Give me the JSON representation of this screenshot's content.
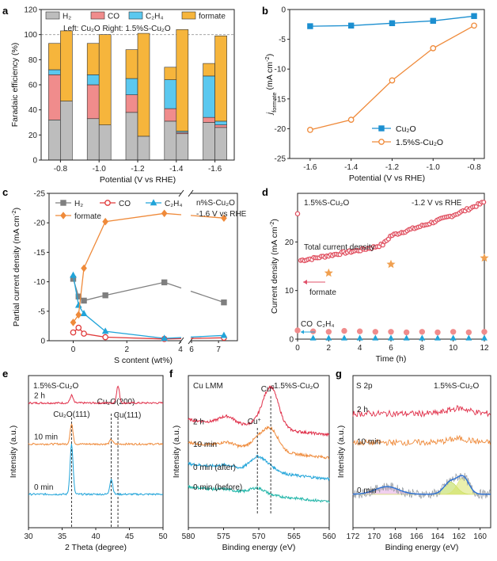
{
  "figure": {
    "page_bg": "#ffffff"
  },
  "chart_data": [
    {
      "id": "a",
      "panel_label": "a",
      "type": "bar",
      "stacked": true,
      "xlabel": "Potential (V vs RHE)",
      "ylabel": "Faradaic efficiency (%)",
      "ylim": [
        0,
        120
      ],
      "yticks": [
        0,
        20,
        40,
        60,
        80,
        100,
        120
      ],
      "reference_line": 100,
      "categories": [
        "-0.8",
        "-1.0",
        "-1.2",
        "-1.4",
        "-1.6"
      ],
      "annotation": "Left: Cu₂O   Right: 1.5%S-Cu₂O",
      "legend": [
        {
          "name": "H₂",
          "color": "#bdbdbd"
        },
        {
          "name": "CO",
          "color": "#f08c8c"
        },
        {
          "name": "C₂H₄",
          "color": "#5bc8ef"
        },
        {
          "name": "formate",
          "color": "#f6b53c"
        }
      ],
      "groups": [
        {
          "sample": "Cu₂O",
          "H2": [
            32,
            33,
            38,
            31,
            30
          ],
          "CO": [
            36,
            27,
            14,
            10,
            4
          ],
          "C2H4": [
            4,
            8,
            13,
            23,
            33
          ],
          "formate": [
            21,
            25,
            23,
            10,
            10
          ]
        },
        {
          "sample": "1.5%S-Cu₂O",
          "H2": [
            47,
            28,
            19,
            21,
            26
          ],
          "CO": [
            0,
            0,
            0,
            1,
            2
          ],
          "C2H4": [
            0,
            0,
            0,
            1,
            3
          ],
          "formate": [
            56,
            72,
            82,
            81,
            68
          ]
        }
      ]
    },
    {
      "id": "b",
      "panel_label": "b",
      "type": "line",
      "xlabel": "Potential (V vs RHE)",
      "ylabel": "j_formate (mA cm⁻²)",
      "ylabel_main": "j",
      "ylabel_sub": "formate",
      "ylabel_rest": " (mA cm",
      "ylabel_sup": "-2",
      "ylabel_end": ")",
      "xlim": [
        -1.7,
        -0.75
      ],
      "ylim": [
        -25,
        0
      ],
      "xticks": [
        "-1.6",
        "-1.4",
        "-1.2",
        "-1.0",
        "-0.8"
      ],
      "yticks": [
        "-25",
        "-20",
        "-15",
        "-10",
        "-5",
        "0"
      ],
      "series": [
        {
          "name": "Cu₂O",
          "color": "#1c8fd0",
          "marker": "square",
          "x": [
            -1.6,
            -1.4,
            -1.2,
            -1.0,
            -0.8
          ],
          "y": [
            -2.8,
            -2.7,
            -2.3,
            -1.9,
            -1.1
          ]
        },
        {
          "name": "1.5%S-Cu₂O",
          "color": "#ef8a3a",
          "marker": "circle",
          "x": [
            -1.6,
            -1.4,
            -1.2,
            -1.0,
            -0.8
          ],
          "y": [
            -20.2,
            -18.5,
            -11.9,
            -6.5,
            -2.7
          ]
        }
      ]
    },
    {
      "id": "c",
      "panel_label": "c",
      "type": "line",
      "xlabel": "S content (wt%)",
      "ylabel": "Partial current density (mA cm⁻²)",
      "ylabel_main": "Partial current density (mA cm",
      "ylabel_sup": "-2",
      "ylabel_end": ")",
      "ylim": [
        0,
        -25
      ],
      "yticks": [
        "0",
        "-5",
        "-10",
        "-15",
        "-20",
        "-25"
      ],
      "xticks": [
        "0",
        "2",
        "4",
        "6",
        "7"
      ],
      "axis_break": "6",
      "annotation_line1": "n%S-Cu₂O",
      "annotation_line2": "-1.6 V vs RHE",
      "x": [
        0,
        0.2,
        0.4,
        1.2,
        3.4,
        7.2
      ],
      "series": [
        {
          "name": "H₂",
          "color": "#7f7f7f",
          "marker": "square",
          "y": [
            -10.5,
            -7.5,
            -6.8,
            -7.7,
            -9.9,
            -6.5
          ]
        },
        {
          "name": "CO",
          "color": "#e03a3a",
          "marker": "circle",
          "y": [
            -1.4,
            -2.2,
            -1.2,
            -0.6,
            -0.3,
            -0.5
          ]
        },
        {
          "name": "C₂H₄",
          "color": "#21a4d9",
          "marker": "triangle",
          "y": [
            -11.1,
            -6.0,
            -4.6,
            -1.6,
            -0.4,
            -0.9
          ]
        },
        {
          "name": "formate",
          "color": "#ef8a3a",
          "marker": "diamond",
          "y": [
            -3.1,
            -4.4,
            -12.3,
            -20.2,
            -21.6,
            -20.8
          ]
        }
      ]
    },
    {
      "id": "d",
      "panel_label": "d",
      "type": "scatter",
      "xlabel": "Time (h)",
      "ylabel": "Current density (mA cm⁻²)",
      "ylabel_main": "Current density (mA cm",
      "ylabel_sup": "-2",
      "ylabel_end": ")",
      "xlim": [
        0,
        12
      ],
      "ylim": [
        0,
        30
      ],
      "xticks": [
        "0",
        "2",
        "4",
        "6",
        "8",
        "10",
        "12"
      ],
      "yticks": [
        "0",
        "10",
        "20"
      ],
      "sample_label": "1.5%S-Cu₂O",
      "condition": "-1.2 V vs RHE",
      "total_label": "Total current density",
      "total_label_color": "#e0506a",
      "total": {
        "color": "#e05060",
        "start_value": 25.8,
        "x": [
          0.2,
          1.0,
          2.0,
          3.0,
          4.0,
          5.0,
          5.5,
          6.0,
          7.0,
          8.0,
          9.0,
          10.0,
          11.0,
          12.0
        ],
        "y": [
          16.2,
          16.6,
          17.2,
          17.8,
          18.3,
          19.0,
          19.5,
          21.3,
          22.3,
          23.3,
          24.4,
          25.5,
          26.8,
          28.2
        ]
      },
      "formate_label": "formate",
      "formate_color": "#f0a050",
      "formate_points": {
        "x": [
          2,
          6,
          12
        ],
        "y": [
          13.6,
          15.4,
          16.7
        ]
      },
      "co_label": "CO",
      "co_color": "#f08c8c",
      "co_points": {
        "x": [
          0,
          1,
          2,
          3,
          4,
          5,
          6,
          7,
          8,
          9,
          10,
          11,
          12
        ],
        "y": [
          1.8,
          1.6,
          1.5,
          1.7,
          1.6,
          1.5,
          1.5,
          1.4,
          1.5,
          1.4,
          1.5,
          1.4,
          1.5
        ]
      },
      "c2h4_label": "C₂H₄",
      "c2h4_color": "#21a4d9",
      "c2h4_points": {
        "x": [
          1,
          2,
          3,
          4,
          5,
          6,
          7,
          8,
          9,
          10,
          11,
          12
        ],
        "y": [
          0.2,
          0.2,
          0.2,
          0.2,
          0.2,
          0.2,
          0.2,
          0.2,
          0.2,
          0.2,
          0.2,
          0.2
        ]
      }
    },
    {
      "id": "e",
      "panel_label": "e",
      "type": "line",
      "xlabel": "2 Theta (degree)",
      "ylabel": "Intensity (a.u.)",
      "sample_label": "1.5%S-Cu₂O",
      "xlim": [
        30,
        50
      ],
      "xticks": [
        "30",
        "35",
        "40",
        "45",
        "50"
      ],
      "peaks": [
        {
          "label": "Cu₂O(111)",
          "x": 36.4
        },
        {
          "label": "Cu₂O(200)",
          "x": 42.3
        },
        {
          "label": "Cu(111)",
          "x": 43.3
        }
      ],
      "traces": [
        {
          "label": "2 h",
          "color": "#e0304a",
          "baseline": 0.82,
          "peaks": [
            [
              36.4,
              0.05
            ],
            [
              43.3,
              0.11
            ]
          ]
        },
        {
          "label": "10 min",
          "color": "#ef8a3a",
          "baseline": 0.55,
          "peaks": [
            [
              36.4,
              0.13
            ],
            [
              42.3,
              0.03
            ]
          ]
        },
        {
          "label": "0 min",
          "color": "#21a4d9",
          "baseline": 0.22,
          "peaks": [
            [
              36.4,
              0.33
            ],
            [
              42.3,
              0.1
            ]
          ]
        }
      ]
    },
    {
      "id": "f",
      "panel_label": "f",
      "type": "line",
      "title": "Cu LMM",
      "sample_label": "1.5%S-Cu₂O",
      "xlabel": "Binding energy (eV)",
      "ylabel": "Intensity (a.u.)",
      "xlim": [
        580,
        560
      ],
      "xticks": [
        "580",
        "575",
        "570",
        "565",
        "560"
      ],
      "peak_labels": [
        {
          "label": "Cu",
          "sup": "+",
          "x": 570.2
        },
        {
          "label": "Cu",
          "sup": "0",
          "x": 568.3
        }
      ],
      "traces": [
        {
          "label": "2 h",
          "color": "#e0304a",
          "baseline": 0.66
        },
        {
          "label": "10 min",
          "color": "#ef8a3a",
          "baseline": 0.51
        },
        {
          "label": "0 min (after)",
          "color": "#21a4d9",
          "baseline": 0.37
        },
        {
          "label": "0 min (before)",
          "color": "#20b5a8",
          "baseline": 0.22
        }
      ]
    },
    {
      "id": "g",
      "panel_label": "g",
      "type": "line",
      "title": "S 2p",
      "sample_label": "1.5%S-Cu₂O",
      "xlabel": "Binding energy (eV)",
      "ylabel": "Intensity (a.u.)",
      "xlim": [
        172,
        159
      ],
      "xticks": [
        "172",
        "170",
        "168",
        "166",
        "164",
        "162",
        "160"
      ],
      "traces": [
        {
          "label": "2 h",
          "color": "#e0304a",
          "baseline": 0.75
        },
        {
          "label": "10 min",
          "color": "#ef8a3a",
          "baseline": 0.56
        },
        {
          "label": "0 min",
          "color": "#9aa0a6",
          "baseline": 0.22
        }
      ],
      "fit_colors": {
        "envelope": "#2a6fd6",
        "sulfate": "#e6a8e0",
        "s2p32": "#d9e36a",
        "s2p12": "#b9d94f"
      }
    }
  ]
}
